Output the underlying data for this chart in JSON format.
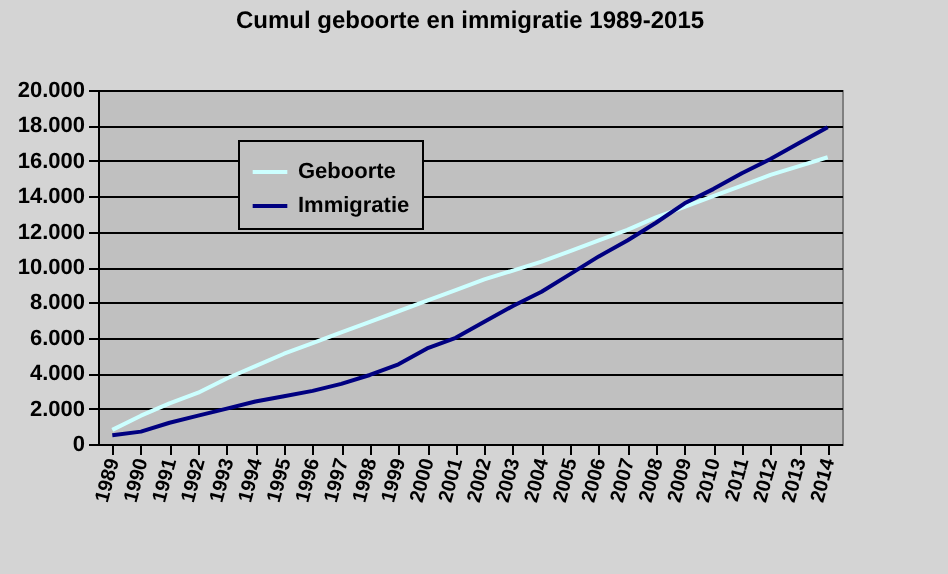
{
  "chart_data": {
    "type": "line",
    "title": "Cumul geboorte en immigratie 1989-2015",
    "categories": [
      "1989",
      "1990",
      "1991",
      "1992",
      "1993",
      "1994",
      "1995",
      "1996",
      "1997",
      "1998",
      "1999",
      "2000",
      "2001",
      "2002",
      "2003",
      "2004",
      "2005",
      "2006",
      "2007",
      "2008",
      "2009",
      "2010",
      "2011",
      "2012",
      "2013",
      "2014"
    ],
    "series": [
      {
        "name": "Geboorte",
        "color": "#ccffff",
        "values": [
          800,
          1600,
          2300,
          2900,
          3700,
          4400,
          5100,
          5700,
          6300,
          6900,
          7500,
          8100,
          8700,
          9300,
          9800,
          10300,
          10900,
          11500,
          12100,
          12800,
          13400,
          14000,
          14600,
          15200,
          15700,
          16200
        ]
      },
      {
        "name": "Immigratie",
        "color": "#000080",
        "values": [
          500,
          700,
          1200,
          1600,
          2000,
          2400,
          2700,
          3000,
          3400,
          3900,
          4500,
          5400,
          6000,
          6900,
          7800,
          8600,
          9600,
          10600,
          11500,
          12500,
          13600,
          14400,
          15300,
          16100,
          17000,
          17900
        ]
      }
    ],
    "ylim": [
      0,
      20000
    ],
    "yticks": [
      {
        "value": 0,
        "label": "0"
      },
      {
        "value": 2000,
        "label": "2.000"
      },
      {
        "value": 4000,
        "label": "4.000"
      },
      {
        "value": 6000,
        "label": "6.000"
      },
      {
        "value": 8000,
        "label": "8.000"
      },
      {
        "value": 10000,
        "label": "10.000"
      },
      {
        "value": 12000,
        "label": "12.000"
      },
      {
        "value": 14000,
        "label": "14.000"
      },
      {
        "value": 16000,
        "label": "16.000"
      },
      {
        "value": 18000,
        "label": "18.000"
      },
      {
        "value": 20000,
        "label": "20.000"
      }
    ],
    "grid": "y",
    "legend": "top left",
    "marker": "none",
    "line_style": "solid"
  }
}
